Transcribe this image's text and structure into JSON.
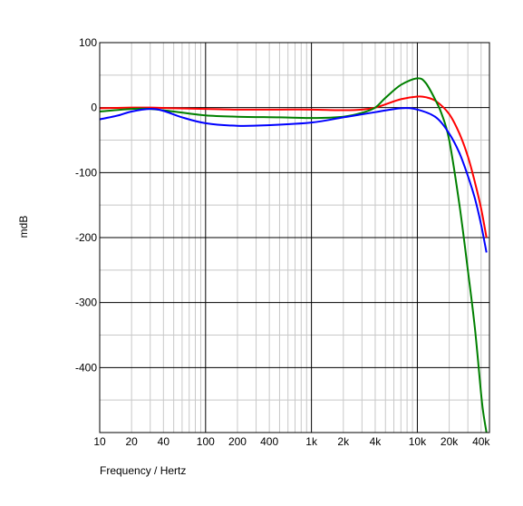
{
  "chart_data": {
    "type": "line",
    "title": "",
    "xlabel": "Frequency / Hertz",
    "ylabel": "mdB",
    "xscale": "log",
    "xlim": [
      10,
      48000
    ],
    "ylim": [
      -500,
      100
    ],
    "grid": true,
    "legend": "none",
    "x_ticks": [
      10,
      20,
      40,
      100,
      200,
      400,
      1000,
      2000,
      4000,
      10000,
      20000,
      40000
    ],
    "x_tick_labels": [
      "10",
      "20",
      "40",
      "100",
      "200",
      "400",
      "1k",
      "2k",
      "4k",
      "10k",
      "20k",
      "40k"
    ],
    "y_ticks": [
      100,
      0,
      -100,
      -200,
      -300,
      -400
    ],
    "y_tick_labels": [
      "100",
      "0",
      "-100",
      "-200",
      "-300",
      "-400"
    ],
    "series": [
      {
        "color": "#ff0000",
        "x": [
          10,
          20,
          30,
          50,
          100,
          200,
          500,
          1000,
          2000,
          3000,
          4000,
          5000,
          7000,
          10000,
          12000,
          15000,
          20000,
          25000,
          30000,
          35000,
          40000,
          45000
        ],
        "y": [
          -1,
          0,
          0,
          -1,
          -2,
          -3,
          -3,
          -3,
          -4,
          -3,
          0,
          5,
          13,
          17,
          16,
          10,
          -10,
          -40,
          -75,
          -115,
          -155,
          -200
        ]
      },
      {
        "color": "#008000",
        "x": [
          10,
          20,
          30,
          50,
          100,
          200,
          500,
          1000,
          2000,
          3000,
          4000,
          5000,
          7000,
          10000,
          12000,
          15000,
          17000,
          20000,
          25000,
          30000,
          35000,
          40000,
          42000,
          45000
        ],
        "y": [
          -6,
          -2,
          -2,
          -6,
          -12,
          -14,
          -15,
          -16,
          -14,
          -8,
          0,
          15,
          35,
          45,
          38,
          10,
          -10,
          -50,
          -150,
          -250,
          -340,
          -440,
          -470,
          -500
        ]
      },
      {
        "color": "#0000ff",
        "x": [
          10,
          15,
          20,
          30,
          40,
          60,
          100,
          200,
          400,
          1000,
          2000,
          4000,
          7000,
          10000,
          15000,
          20000,
          25000,
          30000,
          35000,
          40000,
          45000
        ],
        "y": [
          -18,
          -12,
          -6,
          -2,
          -5,
          -15,
          -24,
          -28,
          -27,
          -23,
          -15,
          -7,
          -1,
          -3,
          -15,
          -40,
          -70,
          -105,
          -140,
          -180,
          -223
        ]
      }
    ]
  }
}
